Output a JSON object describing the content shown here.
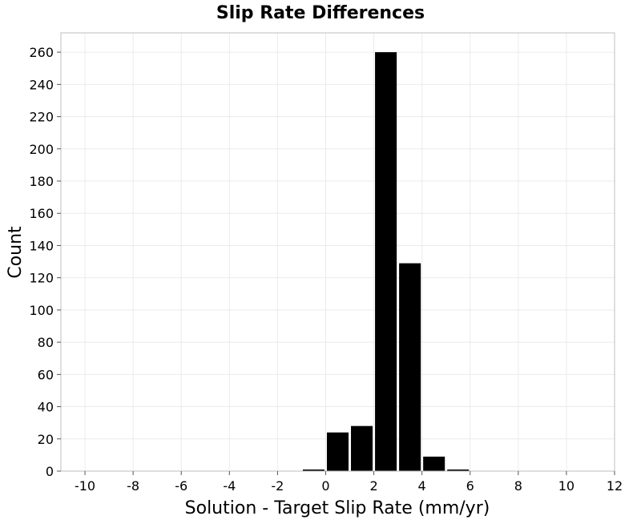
{
  "chart_data": {
    "type": "bar",
    "title": "Slip Rate Differences",
    "xlabel": "Solution - Target Slip Rate (mm/yr)",
    "ylabel": "Count",
    "xlim": [
      -11,
      12
    ],
    "ylim": [
      0,
      272
    ],
    "xticks": [
      -10,
      -8,
      -6,
      -4,
      -2,
      0,
      2,
      4,
      6,
      8,
      10,
      12
    ],
    "yticks": [
      0,
      20,
      40,
      60,
      80,
      100,
      120,
      140,
      160,
      180,
      200,
      220,
      240,
      260
    ],
    "grid": true,
    "bin_width": 1,
    "bins": [
      {
        "center": -0.5,
        "count": 1
      },
      {
        "center": 0.5,
        "count": 24
      },
      {
        "center": 1.5,
        "count": 28
      },
      {
        "center": 2.5,
        "count": 260
      },
      {
        "center": 3.5,
        "count": 129
      },
      {
        "center": 4.5,
        "count": 9
      },
      {
        "center": 5.5,
        "count": 1
      }
    ]
  }
}
